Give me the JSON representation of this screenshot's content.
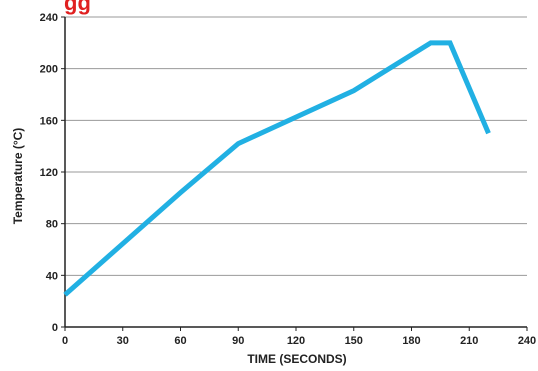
{
  "chart_data": {
    "type": "line",
    "title_fragment": "gg",
    "xlabel": "TIME (SECONDS)",
    "ylabel": "Temperature (°C)",
    "xlim": [
      0,
      240
    ],
    "ylim": [
      0,
      240
    ],
    "x_ticks": [
      0,
      30,
      60,
      90,
      120,
      150,
      180,
      210,
      240
    ],
    "x_tick_labels": [
      "0",
      "30",
      "60",
      "90",
      "120",
      "150",
      "180",
      "210",
      "240"
    ],
    "y_ticks": [
      0,
      40,
      80,
      120,
      160,
      200,
      240
    ],
    "y_tick_labels": [
      "0",
      "40",
      "80",
      "120",
      "160",
      "200",
      "240"
    ],
    "grid": "horizontal",
    "series": [
      {
        "x": [
          0,
          60,
          90,
          150,
          190,
          200,
          220
        ],
        "y": [
          25,
          104,
          142,
          183,
          220,
          220,
          150
        ]
      }
    ]
  },
  "colors": {
    "line": "#21b0e3",
    "grid": "#9a9a9a",
    "axis": "#222222",
    "title_fragment": "#e02020"
  }
}
